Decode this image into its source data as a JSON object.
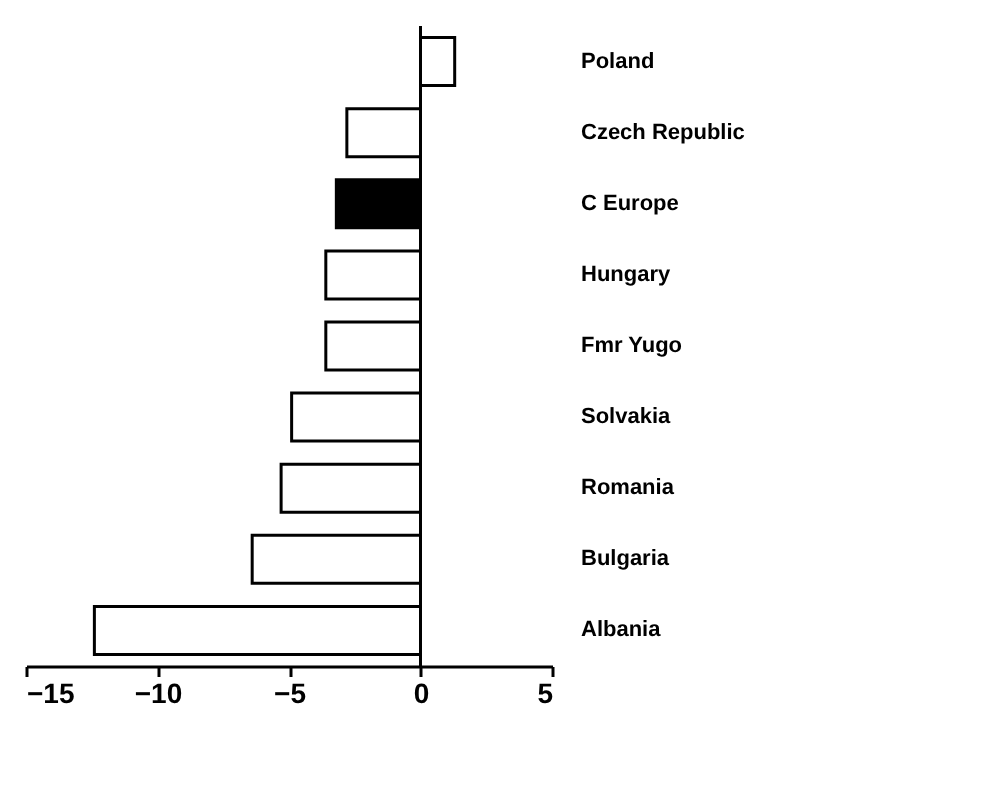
{
  "chart_data": {
    "type": "bar",
    "orientation": "horizontal",
    "categories": [
      "Poland",
      "Czech Republic",
      "C Europe",
      "Hungary",
      "Fmr Yugo",
      "Solvakia",
      "Romania",
      "Bulgaria",
      "Albania"
    ],
    "values": [
      1.3,
      -2.8,
      -3.2,
      -3.6,
      -3.6,
      -4.9,
      -5.3,
      -6.4,
      -12.4
    ],
    "colors": [
      "#ffffff",
      "#ffffff",
      "#000000",
      "#ffffff",
      "#ffffff",
      "#ffffff",
      "#ffffff",
      "#ffffff",
      "#ffffff"
    ],
    "xlim": [
      -15,
      5
    ],
    "xticks": [
      -15,
      -10,
      -5,
      0,
      5
    ],
    "grid": false,
    "ref_lines": [
      {
        "axis": "x",
        "value": 0,
        "color": "#000000"
      }
    ]
  }
}
